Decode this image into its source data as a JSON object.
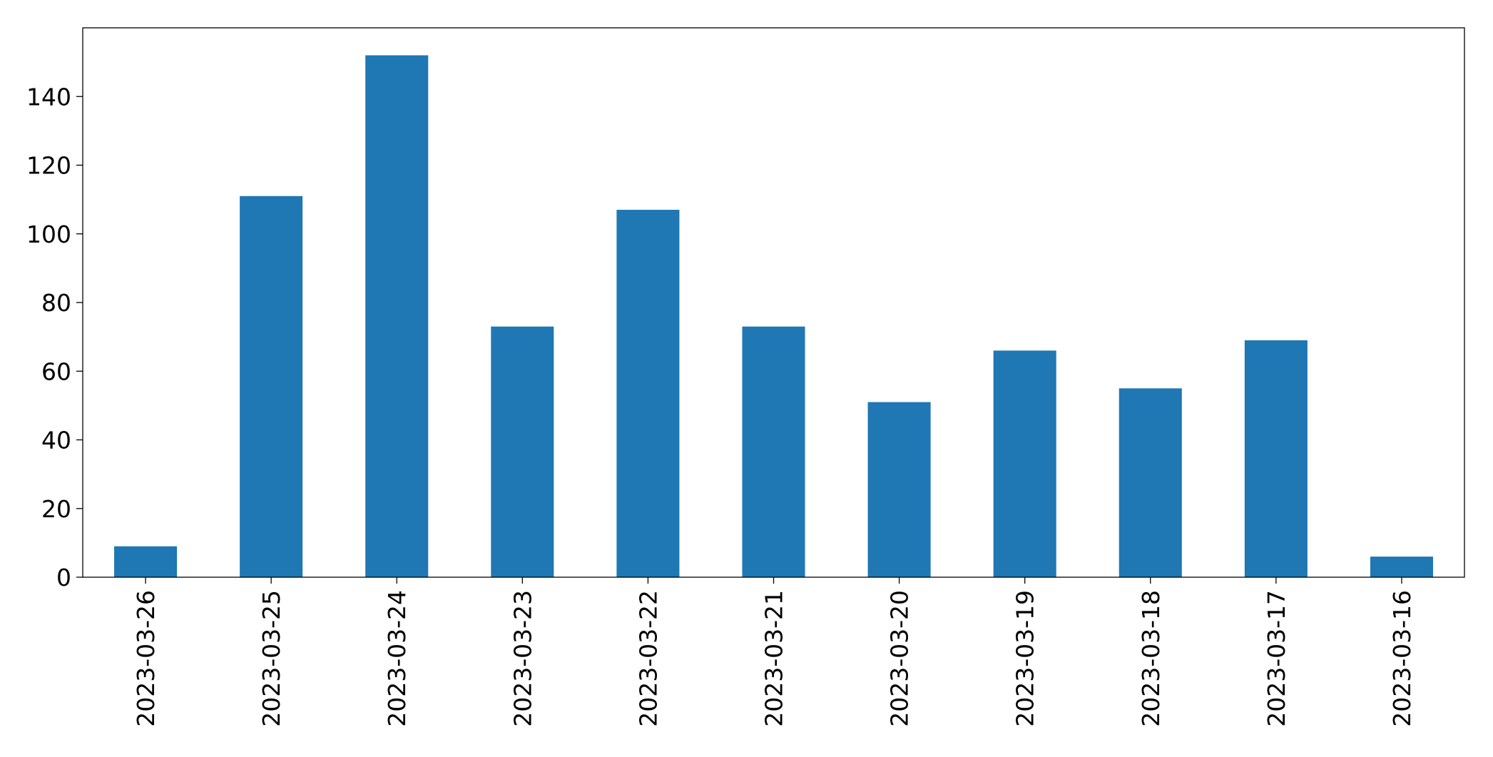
{
  "chart_data": {
    "type": "bar",
    "categories": [
      "2023-03-26",
      "2023-03-25",
      "2023-03-24",
      "2023-03-23",
      "2023-03-22",
      "2023-03-21",
      "2023-03-20",
      "2023-03-19",
      "2023-03-18",
      "2023-03-17",
      "2023-03-16"
    ],
    "values": [
      9,
      111,
      152,
      73,
      107,
      73,
      51,
      66,
      55,
      69,
      6
    ],
    "color": "#1f77b4",
    "ylim": [
      0,
      160
    ],
    "yticks": [
      0,
      20,
      40,
      60,
      80,
      100,
      120,
      140
    ],
    "grid": false
  }
}
